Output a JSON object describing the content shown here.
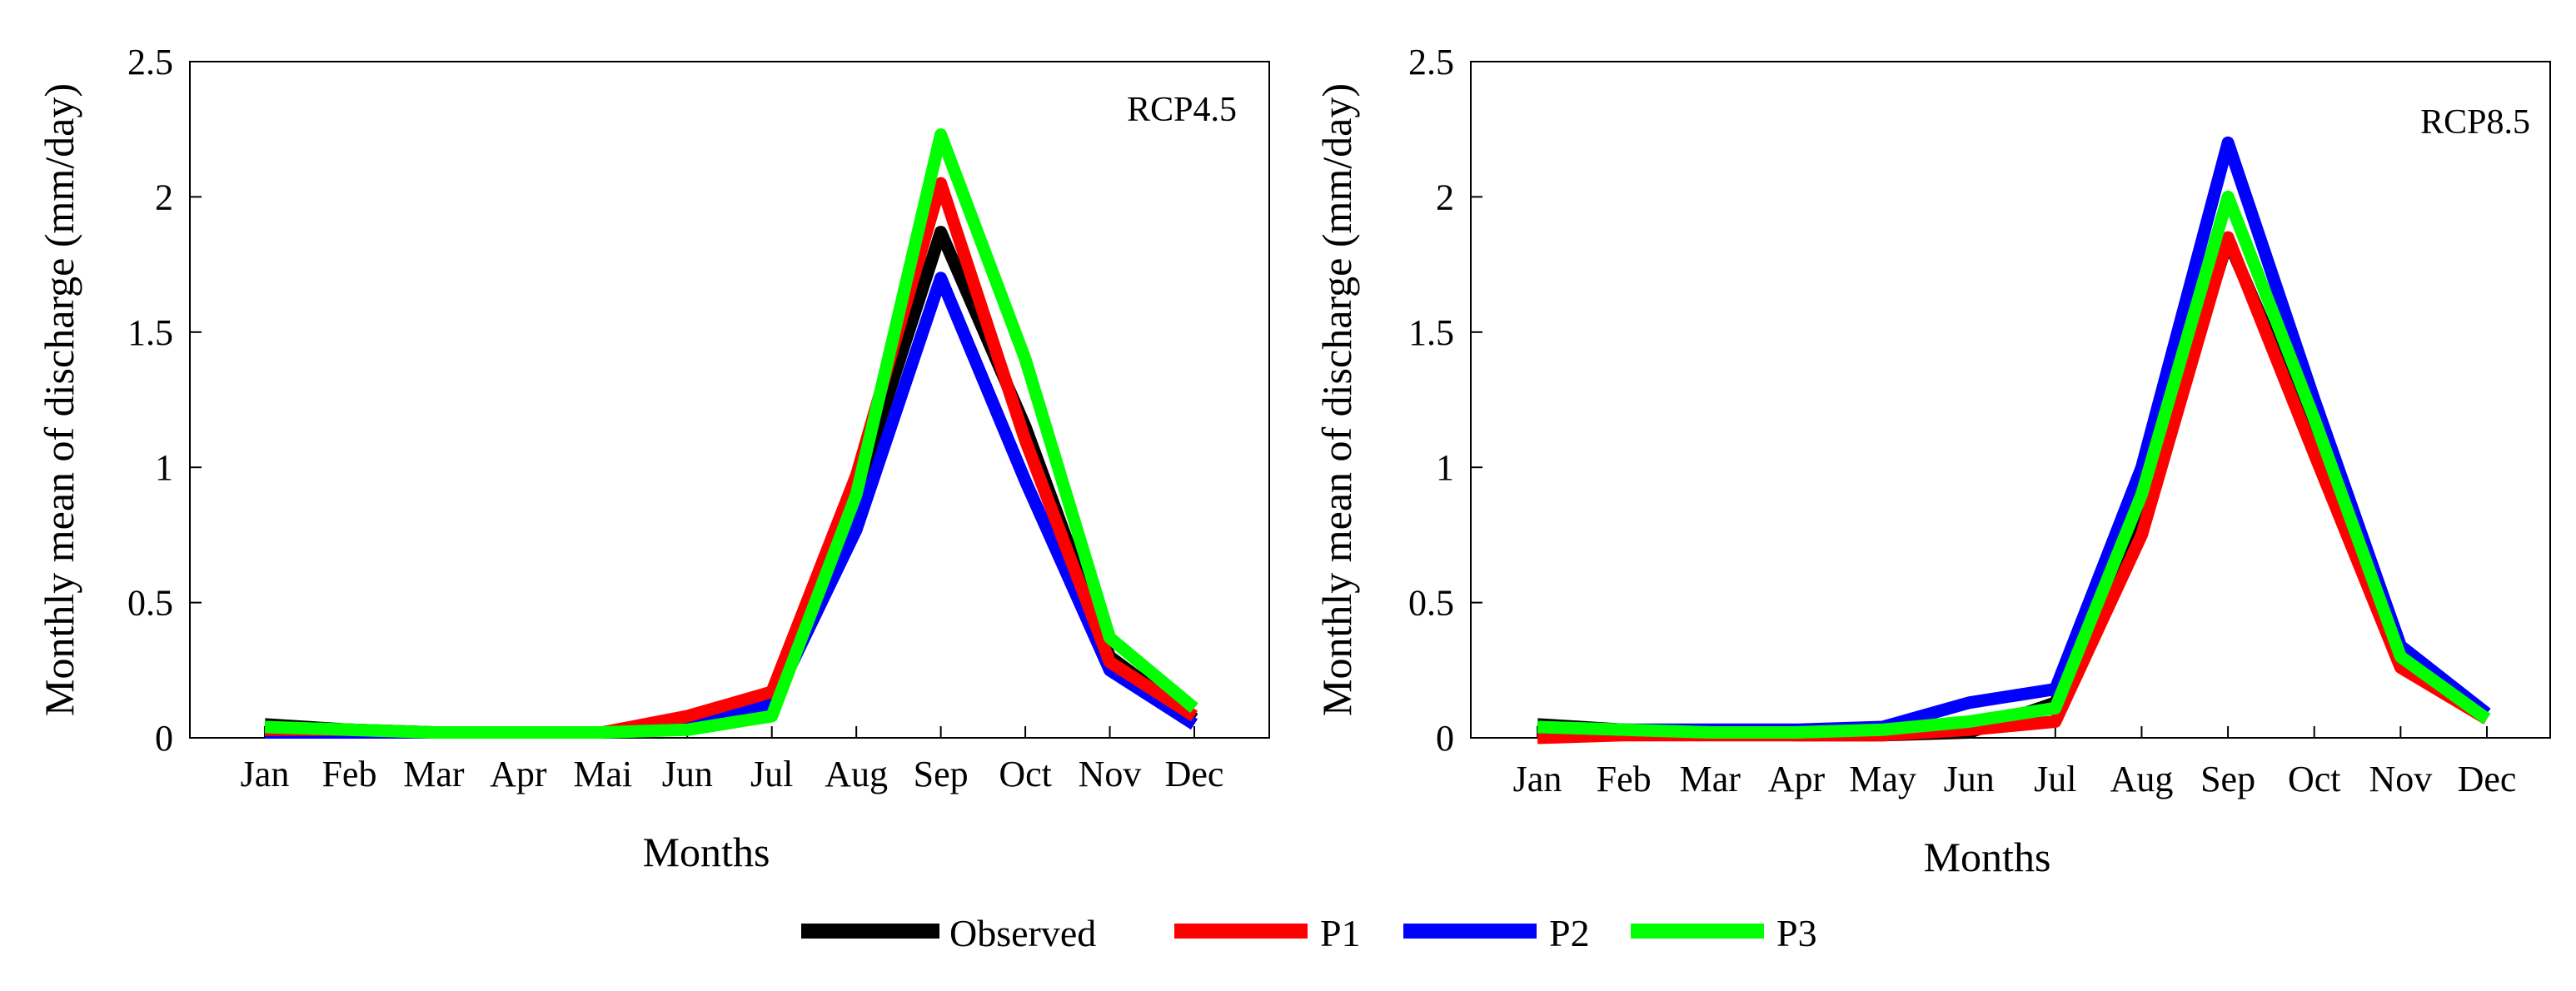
{
  "colors": {
    "Observed": "#000000",
    "P1": "#ff0000",
    "P2": "#0000ff",
    "P3": "#00ff00"
  },
  "legend": {
    "items": [
      "Observed",
      "P1",
      "P2",
      "P3"
    ],
    "placement": "bottom-center"
  },
  "chart_data": [
    {
      "type": "line",
      "annotation": "RCP4.5",
      "xlabel": "Months",
      "ylabel": "Monthly mean of discharge (mm/day)",
      "categories": [
        "Jan",
        "Feb",
        "Mar",
        "Apr",
        "Mai",
        "Jun",
        "Jul",
        "Aug",
        "Sep",
        "Oct",
        "Nov",
        "Dec"
      ],
      "ylim": [
        0,
        2.5
      ],
      "yticks": [
        0,
        0.5,
        1,
        1.5,
        2,
        2.5
      ],
      "ytick_labels": [
        "0",
        "0.5",
        "1",
        "1.5",
        "2",
        "2.5"
      ],
      "grid": false,
      "series": [
        {
          "name": "Observed",
          "values": [
            0.05,
            0.03,
            0.02,
            0.02,
            0.02,
            0.05,
            0.13,
            0.9,
            1.87,
            1.15,
            0.3,
            0.07
          ]
        },
        {
          "name": "P2",
          "values": [
            0.02,
            0.02,
            0.02,
            0.02,
            0.02,
            0.06,
            0.12,
            0.77,
            1.7,
            0.95,
            0.25,
            0.05
          ]
        },
        {
          "name": "P1",
          "values": [
            0.03,
            0.03,
            0.02,
            0.02,
            0.02,
            0.08,
            0.17,
            0.97,
            2.05,
            1.1,
            0.28,
            0.08
          ]
        },
        {
          "name": "P3",
          "values": [
            0.04,
            0.03,
            0.02,
            0.02,
            0.02,
            0.03,
            0.08,
            0.9,
            2.23,
            1.4,
            0.37,
            0.11
          ]
        }
      ]
    },
    {
      "type": "line",
      "annotation": "RCP8.5",
      "xlabel": "Months",
      "ylabel": "Monthly mean of discharge (mm/day)",
      "categories": [
        "Jan",
        "Feb",
        "Mar",
        "Apr",
        "May",
        "Jun",
        "Jul",
        "Aug",
        "Sep",
        "Oct",
        "Nov",
        "Dec"
      ],
      "ylim": [
        0,
        2.5
      ],
      "yticks": [
        0,
        0.5,
        1,
        1.5,
        2,
        2.5
      ],
      "ytick_labels": [
        "0",
        "0.5",
        "1",
        "1.5",
        "2",
        "2.5"
      ],
      "grid": false,
      "series": [
        {
          "name": "Observed",
          "values": [
            0.05,
            0.03,
            0.02,
            0.01,
            0.01,
            0.02,
            0.13,
            0.82,
            1.84,
            1.1,
            0.28,
            0.07
          ]
        },
        {
          "name": "P1",
          "values": [
            0.0,
            0.01,
            0.01,
            0.01,
            0.01,
            0.03,
            0.06,
            0.75,
            1.85,
            1.05,
            0.26,
            0.07
          ]
        },
        {
          "name": "P2",
          "values": [
            0.04,
            0.03,
            0.03,
            0.03,
            0.04,
            0.13,
            0.18,
            1.0,
            2.2,
            1.25,
            0.34,
            0.09
          ]
        },
        {
          "name": "P3",
          "values": [
            0.04,
            0.03,
            0.02,
            0.02,
            0.03,
            0.06,
            0.11,
            0.9,
            2.0,
            1.18,
            0.3,
            0.07
          ]
        }
      ]
    }
  ]
}
